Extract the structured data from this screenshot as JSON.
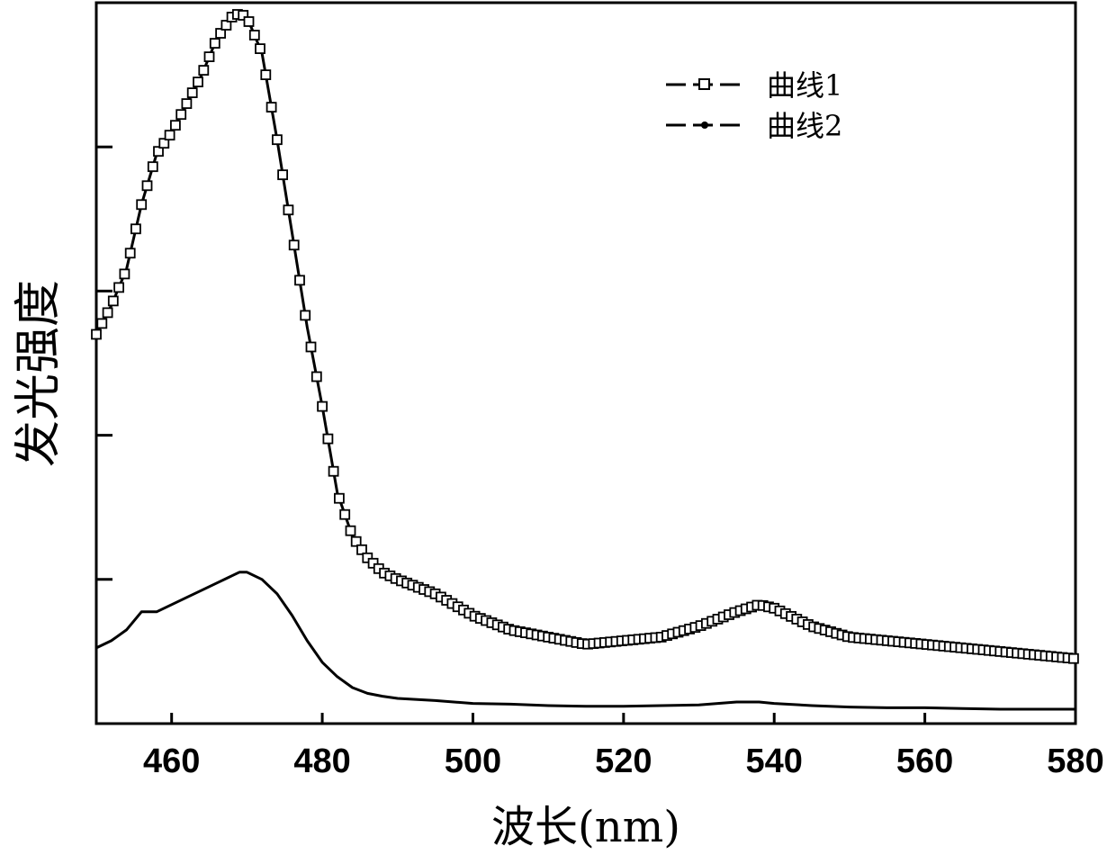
{
  "chart_data": {
    "type": "line",
    "xlabel": "波长(nm)",
    "ylabel": "发光强度",
    "xlim": [
      450,
      580
    ],
    "ylim": [
      0,
      10
    ],
    "x_ticks": [
      460,
      480,
      500,
      520,
      540,
      560,
      580
    ],
    "y_ticks_labeled": false,
    "y_tick_positions": [
      2,
      4,
      6,
      8,
      10
    ],
    "grid": false,
    "legend_position": "top-right",
    "series": [
      {
        "name": "曲线1",
        "marker": "open-square",
        "x": [
          450,
          452,
          454,
          456,
          458,
          460,
          462,
          464,
          466,
          468,
          469,
          470,
          472,
          474,
          476,
          478,
          480,
          482,
          484,
          486,
          488,
          490,
          495,
          500,
          505,
          510,
          515,
          520,
          525,
          530,
          535,
          538,
          540,
          545,
          550,
          555,
          560,
          565,
          570,
          575,
          580
        ],
        "values": [
          5.4,
          5.8,
          6.3,
          7.2,
          7.9,
          8.2,
          8.6,
          9.0,
          9.5,
          9.8,
          9.85,
          9.8,
          9.3,
          8.1,
          6.8,
          5.5,
          4.4,
          3.2,
          2.6,
          2.3,
          2.1,
          2.0,
          1.8,
          1.5,
          1.3,
          1.2,
          1.1,
          1.15,
          1.2,
          1.35,
          1.55,
          1.65,
          1.6,
          1.35,
          1.2,
          1.15,
          1.1,
          1.05,
          1.0,
          0.95,
          0.9
        ]
      },
      {
        "name": "曲线2",
        "marker": "dot",
        "x": [
          450,
          452,
          454,
          456,
          458,
          460,
          462,
          464,
          466,
          468,
          469,
          470,
          472,
          474,
          476,
          478,
          480,
          482,
          484,
          486,
          488,
          490,
          495,
          500,
          505,
          510,
          515,
          520,
          525,
          530,
          535,
          538,
          540,
          545,
          550,
          555,
          560,
          565,
          570,
          575,
          580
        ],
        "values": [
          1.05,
          1.15,
          1.3,
          1.55,
          1.55,
          1.65,
          1.75,
          1.85,
          1.95,
          2.05,
          2.1,
          2.1,
          2.0,
          1.8,
          1.5,
          1.15,
          0.85,
          0.65,
          0.5,
          0.42,
          0.38,
          0.35,
          0.32,
          0.28,
          0.27,
          0.25,
          0.24,
          0.24,
          0.25,
          0.26,
          0.3,
          0.3,
          0.28,
          0.25,
          0.23,
          0.22,
          0.22,
          0.21,
          0.2,
          0.2,
          0.2
        ]
      }
    ]
  }
}
